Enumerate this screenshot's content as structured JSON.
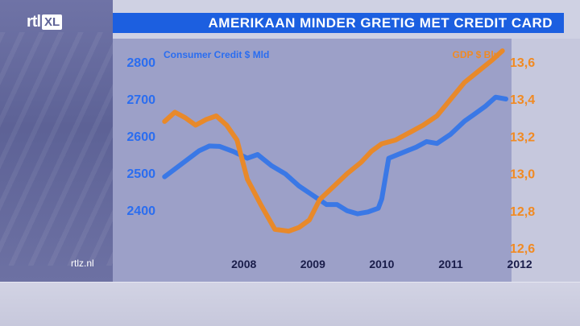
{
  "header": {
    "title": "AMERIKAAN MINDER GRETIG MET CREDIT CARD",
    "logo_main": "rtl",
    "logo_badge": "XL"
  },
  "footer": {
    "source": "rtlz.nl"
  },
  "colors": {
    "consumer_credit": "#3a78e6",
    "gdp": "#e8892a",
    "title_bar": "#1c5fe0"
  },
  "chart_data": {
    "type": "line",
    "title": "AMERIKAAN MINDER GRETIG MET CREDIT CARD",
    "x_tick_labels": [
      "2008",
      "2009",
      "2010",
      "2011",
      "2012"
    ],
    "x_range": [
      2007.3,
      2012.3
    ],
    "y_left": {
      "label": "Consumer Credit $ Mld",
      "ticks": [
        "2800",
        "2700",
        "2600",
        "2500",
        "2400"
      ],
      "range": [
        2300,
        2860
      ]
    },
    "y_right": {
      "label": "GDP $ Bln",
      "ticks": [
        "13,6",
        "13,4",
        "13,2",
        "13,0",
        "12,8",
        "12,6"
      ],
      "range": [
        12.6,
        13.65
      ]
    },
    "grid": false,
    "legend": "none",
    "series": [
      {
        "name": "Consumer Credit $ Mld",
        "axis": "left",
        "x": [
          2007.35,
          2007.6,
          2007.85,
          2008.0,
          2008.15,
          2008.35,
          2008.55,
          2008.7,
          2008.9,
          2009.1,
          2009.3,
          2009.5,
          2009.7,
          2009.85,
          2010.0,
          2010.15,
          2010.3,
          2010.45,
          2010.5,
          2010.6,
          2010.8,
          2011.0,
          2011.15,
          2011.3,
          2011.5,
          2011.7,
          2011.85,
          2012.0,
          2012.15,
          2012.3
        ],
        "values": [
          2490,
          2525,
          2560,
          2573,
          2572,
          2558,
          2540,
          2550,
          2520,
          2498,
          2465,
          2440,
          2415,
          2415,
          2398,
          2390,
          2395,
          2405,
          2430,
          2540,
          2555,
          2570,
          2585,
          2580,
          2605,
          2640,
          2660,
          2680,
          2705,
          2700
        ]
      },
      {
        "name": "GDP $ Bln",
        "axis": "right",
        "x": [
          2007.35,
          2007.5,
          2007.65,
          2007.8,
          2007.95,
          2008.1,
          2008.25,
          2008.4,
          2008.55,
          2008.75,
          2008.95,
          2009.15,
          2009.3,
          2009.45,
          2009.6,
          2009.8,
          2010.0,
          2010.2,
          2010.35,
          2010.5,
          2010.7,
          2010.9,
          2011.1,
          2011.3,
          2011.5,
          2011.7,
          2011.9,
          2012.1,
          2012.25
        ],
        "values": [
          13.28,
          13.33,
          13.3,
          13.26,
          13.29,
          13.31,
          13.26,
          13.18,
          12.97,
          12.83,
          12.7,
          12.69,
          12.71,
          12.75,
          12.86,
          12.93,
          13.0,
          13.06,
          13.12,
          13.16,
          13.18,
          13.22,
          13.26,
          13.31,
          13.4,
          13.49,
          13.55,
          13.61,
          13.66
        ]
      }
    ]
  }
}
